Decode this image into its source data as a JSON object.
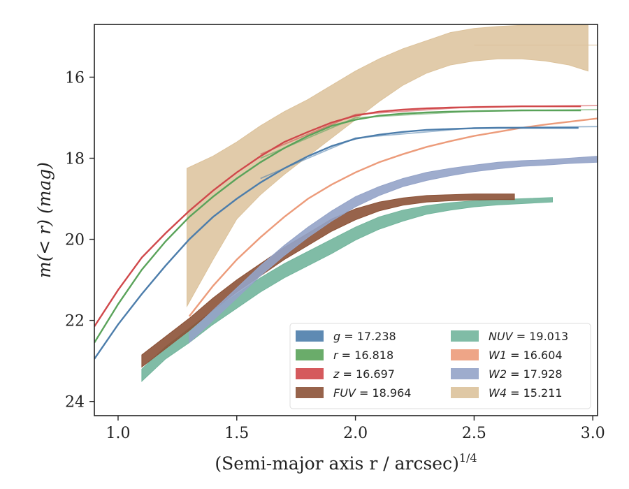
{
  "chart_data": {
    "type": "area",
    "xlabel": "(Semi-major axis r / arcsec)",
    "xlabel_superscript": "1/4",
    "ylabel": "m(< r) (mag)",
    "xlim": [
      0.9,
      3.02
    ],
    "ylim": [
      24.35,
      14.7
    ],
    "y_inverted": true,
    "grid": false,
    "legend_position": "lower-right",
    "legend_columns": 2,
    "xticks": [
      1.0,
      1.5,
      2.0,
      2.5,
      3.0
    ],
    "xtick_labels": [
      "1.0",
      "1.5",
      "2.0",
      "2.5",
      "3.0"
    ],
    "yticks": [
      16,
      18,
      20,
      22,
      24
    ],
    "ytick_labels": [
      "16",
      "18",
      "20",
      "22",
      "24"
    ],
    "series": [
      {
        "name": "g",
        "legend_label": "g = 17.238",
        "value": "17.238",
        "color": "#4c7dab",
        "band": false,
        "x": [
          0.9,
          1.0,
          1.1,
          1.2,
          1.3,
          1.4,
          1.5,
          1.6,
          1.7,
          1.8,
          1.9,
          2.0,
          2.1,
          2.2,
          2.3,
          2.4,
          2.5,
          2.6,
          2.7,
          2.8,
          2.94
        ],
        "y": [
          22.95,
          22.1,
          21.35,
          20.65,
          20.0,
          19.45,
          19.0,
          18.6,
          18.25,
          17.95,
          17.7,
          17.52,
          17.42,
          17.35,
          17.3,
          17.28,
          17.26,
          17.25,
          17.25,
          17.25,
          17.25
        ],
        "extended_x": [
          1.6,
          2.0,
          2.5,
          3.02
        ],
        "extended_y": [
          18.5,
          17.5,
          17.25,
          17.22
        ]
      },
      {
        "name": "r",
        "legend_label": "r = 16.818",
        "value": "16.818",
        "color": "#5aa35a",
        "band": false,
        "x": [
          0.9,
          1.0,
          1.1,
          1.2,
          1.3,
          1.4,
          1.5,
          1.6,
          1.7,
          1.8,
          1.9,
          2.0,
          2.1,
          2.2,
          2.3,
          2.4,
          2.5,
          2.6,
          2.7,
          2.8,
          2.95
        ],
        "y": [
          22.55,
          21.6,
          20.75,
          20.05,
          19.45,
          18.95,
          18.5,
          18.1,
          17.75,
          17.45,
          17.2,
          17.05,
          16.95,
          16.9,
          16.87,
          16.85,
          16.84,
          16.83,
          16.82,
          16.82,
          16.82
        ],
        "extended_x": [
          1.6,
          2.0,
          2.5,
          3.02
        ],
        "extended_y": [
          18.0,
          17.0,
          16.84,
          16.8
        ]
      },
      {
        "name": "z",
        "legend_label": "z = 16.697",
        "value": "16.697",
        "color": "#d0484b",
        "band": false,
        "x": [
          0.9,
          1.0,
          1.1,
          1.2,
          1.3,
          1.4,
          1.5,
          1.6,
          1.7,
          1.8,
          1.9,
          2.0,
          2.1,
          2.2,
          2.3,
          2.4,
          2.5,
          2.6,
          2.7,
          2.8,
          2.95
        ],
        "y": [
          22.15,
          21.25,
          20.45,
          19.85,
          19.3,
          18.8,
          18.35,
          17.95,
          17.6,
          17.35,
          17.12,
          16.95,
          16.85,
          16.8,
          16.77,
          16.75,
          16.74,
          16.73,
          16.72,
          16.72,
          16.72
        ],
        "extended_x": [
          1.6,
          2.0,
          2.5,
          3.02
        ],
        "extended_y": [
          17.9,
          16.92,
          16.73,
          16.7
        ]
      },
      {
        "name": "FUV",
        "legend_label": "FUV = 18.964",
        "value": "18.964",
        "color": "#8c5237",
        "band": true,
        "x": [
          1.1,
          1.2,
          1.3,
          1.4,
          1.5,
          1.6,
          1.7,
          1.8,
          1.9,
          2.0,
          2.1,
          2.2,
          2.3,
          2.4,
          2.5,
          2.6,
          2.67
        ],
        "y_low": [
          22.85,
          22.4,
          21.95,
          21.45,
          21.0,
          20.6,
          20.2,
          19.85,
          19.5,
          19.25,
          19.08,
          18.98,
          18.92,
          18.9,
          18.88,
          18.88,
          18.88
        ],
        "y_high": [
          23.15,
          22.7,
          22.25,
          21.75,
          21.3,
          20.9,
          20.5,
          20.15,
          19.8,
          19.52,
          19.3,
          19.16,
          19.08,
          19.05,
          19.03,
          19.02,
          19.02
        ]
      },
      {
        "name": "NUV",
        "legend_label": "NUV = 19.013",
        "value": "19.013",
        "color": "#72b59c",
        "band": true,
        "x": [
          1.1,
          1.2,
          1.3,
          1.4,
          1.5,
          1.6,
          1.7,
          1.8,
          1.9,
          2.0,
          2.1,
          2.2,
          2.3,
          2.4,
          2.5,
          2.6,
          2.7,
          2.83
        ],
        "y_low": [
          23.2,
          22.65,
          22.2,
          21.75,
          21.35,
          20.95,
          20.6,
          20.3,
          20.0,
          19.7,
          19.45,
          19.28,
          19.17,
          19.1,
          19.05,
          19.02,
          19.0,
          18.97
        ],
        "y_high": [
          23.5,
          22.95,
          22.55,
          22.1,
          21.7,
          21.3,
          20.95,
          20.65,
          20.35,
          20.02,
          19.75,
          19.55,
          19.38,
          19.28,
          19.2,
          19.15,
          19.12,
          19.08
        ]
      },
      {
        "name": "W1",
        "legend_label": "W1 = 16.604",
        "value": "16.604",
        "color": "#ec9b7a",
        "band": false,
        "x": [
          1.3,
          1.4,
          1.5,
          1.6,
          1.7,
          1.8,
          1.9,
          2.0,
          2.1,
          2.2,
          2.3,
          2.4,
          2.5,
          2.6,
          2.7,
          2.8,
          2.9,
          3.02
        ],
        "y": [
          21.9,
          21.15,
          20.5,
          19.95,
          19.45,
          19.0,
          18.65,
          18.35,
          18.1,
          17.9,
          17.72,
          17.58,
          17.45,
          17.35,
          17.25,
          17.17,
          17.1,
          17.02
        ]
      },
      {
        "name": "W2",
        "legend_label": "W2 = 17.928",
        "value": "17.928",
        "color": "#94a3c8",
        "band": true,
        "x": [
          1.3,
          1.4,
          1.5,
          1.6,
          1.7,
          1.8,
          1.9,
          2.0,
          2.1,
          2.2,
          2.3,
          2.4,
          2.5,
          2.6,
          2.7,
          2.8,
          2.9,
          3.02
        ],
        "y_low": [
          22.3,
          21.75,
          21.2,
          20.65,
          20.15,
          19.7,
          19.3,
          18.95,
          18.7,
          18.5,
          18.35,
          18.25,
          18.17,
          18.1,
          18.06,
          18.04,
          18.0,
          17.95
        ],
        "y_high": [
          22.55,
          22.0,
          21.45,
          20.9,
          20.4,
          19.95,
          19.55,
          19.2,
          18.92,
          18.7,
          18.55,
          18.43,
          18.33,
          18.26,
          18.2,
          18.17,
          18.13,
          18.1
        ]
      },
      {
        "name": "W4",
        "legend_label": "W4 = 15.211",
        "value": "15.211",
        "color": "#dcc29b",
        "band": true,
        "x": [
          1.29,
          1.4,
          1.5,
          1.6,
          1.7,
          1.8,
          1.9,
          2.0,
          2.1,
          2.2,
          2.3,
          2.4,
          2.5,
          2.6,
          2.7,
          2.8,
          2.9,
          2.98
        ],
        "y_low": [
          21.65,
          20.5,
          19.5,
          18.9,
          18.4,
          17.95,
          17.5,
          17.05,
          16.6,
          16.2,
          15.9,
          15.7,
          15.6,
          15.55,
          15.55,
          15.6,
          15.7,
          15.85
        ],
        "y_high": [
          18.25,
          17.95,
          17.6,
          17.2,
          16.85,
          16.55,
          16.2,
          15.85,
          15.55,
          15.3,
          15.1,
          14.9,
          14.8,
          14.75,
          14.72,
          14.72,
          14.72,
          14.72
        ],
        "extended_x": [
          2.5,
          3.02
        ],
        "extended_y": [
          15.21,
          15.21
        ]
      }
    ]
  }
}
